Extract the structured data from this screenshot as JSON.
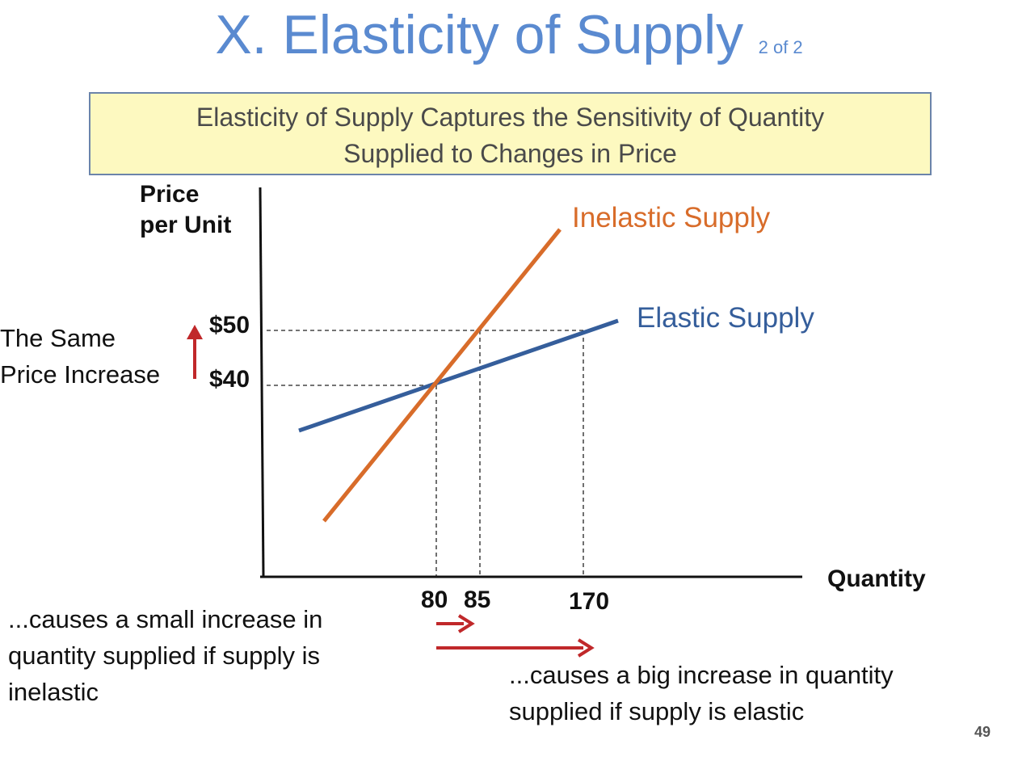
{
  "slide": {
    "title": "X. Elasticity of Supply",
    "slide_count": "2 of 2",
    "callout_line1": "Elasticity of Supply Captures the Sensitivity of Quantity",
    "callout_line2": "Supplied to Changes in Price",
    "page_number": "49"
  },
  "chart_data": {
    "type": "line",
    "ylabel_line1": "Price",
    "ylabel_line2": "per Unit",
    "xlabel": "Quantity",
    "price_ticks": [
      "$50",
      "$40"
    ],
    "quantity_ticks": [
      "80",
      "85",
      "170"
    ],
    "series": [
      {
        "name": "Inelastic Supply",
        "color": "#d86c2a",
        "points": [
          [
            80,
            40
          ],
          [
            85,
            50
          ]
        ]
      },
      {
        "name": "Elastic Supply",
        "color": "#355e9b",
        "points": [
          [
            80,
            40
          ],
          [
            170,
            50
          ]
        ]
      }
    ]
  },
  "annotations": {
    "price_note_line1": "The Same",
    "price_note_line2": "Price Increase",
    "left_note_line1": "...causes a small increase in",
    "left_note_line2": "quantity supplied if supply is",
    "left_note_line3": "inelastic",
    "right_note_line1": "...causes a big increase in quantity",
    "right_note_line2": "supplied if supply is elastic"
  },
  "colors": {
    "title": "#5a8ad0",
    "inelastic": "#d86c2a",
    "elastic": "#355e9b",
    "arrow": "#c0282a",
    "callout_bg": "#fdf9c0"
  }
}
